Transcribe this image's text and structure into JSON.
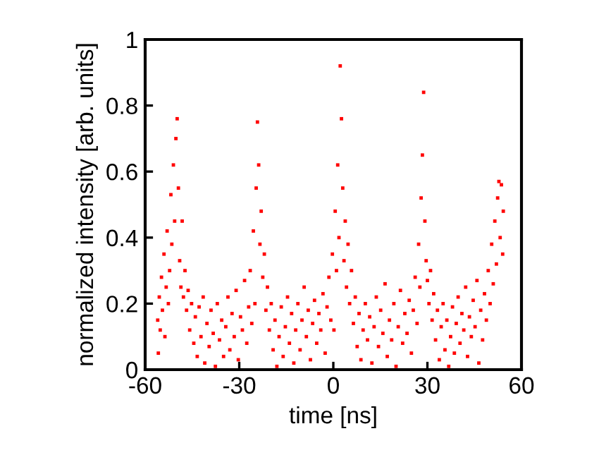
{
  "chart_data": {
    "type": "scatter",
    "xlabel": "time [ns]",
    "ylabel": "normalized intensity [arb. units]",
    "xlim": [
      -60,
      60
    ],
    "ylim": [
      0,
      1
    ],
    "xticks": [
      -60,
      -30,
      0,
      30,
      60
    ],
    "yticks": [
      0,
      0.2,
      0.4,
      0.6,
      0.8,
      1
    ],
    "grid": false,
    "legend": false,
    "marker": "square",
    "series": [
      {
        "color": "#ff0000",
        "x": [
          -56,
          -55.8,
          -55.5,
          -55.2,
          -54.8,
          -54.5,
          -54,
          -53.7,
          -53.3,
          -53,
          -52.6,
          -52.2,
          -51.8,
          -51.5,
          -51,
          -50.6,
          -50.2,
          -49.8,
          -49.4,
          -49,
          -48.6,
          -48.2,
          -47.8,
          -47.3,
          -46.8,
          -46.3,
          -45.8,
          -45.2,
          -44.5,
          -44,
          -43.4,
          -42.8,
          -42.2,
          -41.5,
          -41,
          -40.3,
          -39.6,
          -39,
          -38.3,
          -37.6,
          -37,
          -36.3,
          -35.6,
          -35,
          -34.3,
          -33.6,
          -33,
          -32.3,
          -31.6,
          -31,
          -30.3,
          -29.6,
          -29,
          -28.3,
          -27.6,
          -27,
          -26.5,
          -26,
          -25.5,
          -25,
          -24.6,
          -24.2,
          -23.8,
          -23.4,
          -23,
          -22.5,
          -22,
          -21.5,
          -21,
          -20.4,
          -19.8,
          -19.2,
          -18.6,
          -18,
          -17.3,
          -16.6,
          -16,
          -15.3,
          -14.6,
          -14,
          -13.3,
          -12.6,
          -12,
          -11.3,
          -10.6,
          -10,
          -9.3,
          -8.6,
          -8,
          -7.3,
          -6.6,
          -6,
          -5.3,
          -4.6,
          -4,
          -3.3,
          -2.6,
          -2,
          -1.4,
          -0.8,
          -0.3,
          0.2,
          0.6,
          1,
          1.4,
          1.8,
          2.2,
          2.6,
          3,
          3.4,
          3.8,
          4.2,
          4.7,
          5.2,
          5.8,
          6.4,
          7,
          7.6,
          8.2,
          8.8,
          9.5,
          10.2,
          10.9,
          11.6,
          12.3,
          13,
          13.7,
          14.4,
          15.1,
          15.8,
          16.5,
          17.2,
          17.9,
          18.6,
          19.3,
          20,
          20.7,
          21.4,
          22.1,
          22.8,
          23.5,
          24.2,
          24.9,
          25.5,
          26.1,
          26.7,
          27.2,
          27.6,
          28,
          28.4,
          28.8,
          29.2,
          29.6,
          30,
          30.5,
          31,
          31.5,
          32,
          32.6,
          33.2,
          33.8,
          34.4,
          35,
          35.6,
          36.2,
          36.8,
          37.4,
          38,
          38.6,
          39.2,
          39.8,
          40.4,
          41,
          41.6,
          42.2,
          42.8,
          43.4,
          44,
          44.6,
          45.2,
          45.8,
          46.4,
          47,
          47.6,
          48.2,
          48.8,
          49.4,
          50,
          50.5,
          51,
          51.5,
          52,
          52.4,
          52.8,
          53.2,
          53.6,
          54,
          54.2
        ],
        "values": [
          0.15,
          0.05,
          0.22,
          0.12,
          0.28,
          0.18,
          0.35,
          0.1,
          0.25,
          0.42,
          0.2,
          0.3,
          0.53,
          0.38,
          0.62,
          0.45,
          0.7,
          0.76,
          0.55,
          0.33,
          0.25,
          0.45,
          0.22,
          0.3,
          0.18,
          0.24,
          0.12,
          0.2,
          0.08,
          0.16,
          0.04,
          0.19,
          0.1,
          0.22,
          0.02,
          0.14,
          0.07,
          0.18,
          0.11,
          0.01,
          0.2,
          0.09,
          0.15,
          0.04,
          0.13,
          0.22,
          0.06,
          0.17,
          0.1,
          0.24,
          0.03,
          0.16,
          0.12,
          0.27,
          0.08,
          0.19,
          0.3,
          0.14,
          0.42,
          0.2,
          0.55,
          0.75,
          0.62,
          0.38,
          0.48,
          0.28,
          0.35,
          0.18,
          0.25,
          0.12,
          0.2,
          0.06,
          0.15,
          0.01,
          0.1,
          0.19,
          0.04,
          0.13,
          0.22,
          0.08,
          0.17,
          0.02,
          0.12,
          0.2,
          0.06,
          0.15,
          0.25,
          0.1,
          0.18,
          0.03,
          0.14,
          0.21,
          0.08,
          0.17,
          0.12,
          0.23,
          0.05,
          0.19,
          0.28,
          0.15,
          0.35,
          0.12,
          0.48,
          0.3,
          0.62,
          0.4,
          0.92,
          0.76,
          0.55,
          0.33,
          0.45,
          0.25,
          0.38,
          0.2,
          0.3,
          0.14,
          0.22,
          0.07,
          0.17,
          0.03,
          0.12,
          0.2,
          0.09,
          0.16,
          0.02,
          0.13,
          0.22,
          0.07,
          0.18,
          0.11,
          0.26,
          0.04,
          0.15,
          0.09,
          0.2,
          0.01,
          0.13,
          0.24,
          0.08,
          0.17,
          0.11,
          0.21,
          0.05,
          0.18,
          0.28,
          0.14,
          0.38,
          0.25,
          0.52,
          0.65,
          0.84,
          0.45,
          0.33,
          0.27,
          0.2,
          0.3,
          0.15,
          0.23,
          0.09,
          0.18,
          0.03,
          0.13,
          0.2,
          0.06,
          0.15,
          0.01,
          0.1,
          0.19,
          0.05,
          0.14,
          0.22,
          0.08,
          0.17,
          0.12,
          0.25,
          0.04,
          0.16,
          0.1,
          0.21,
          0.13,
          0.27,
          0.02,
          0.18,
          0.09,
          0.23,
          0.15,
          0.3,
          0.2,
          0.38,
          0.26,
          0.45,
          0.32,
          0.52,
          0.57,
          0.4,
          0.56,
          0.35,
          0.48
        ]
      }
    ]
  }
}
